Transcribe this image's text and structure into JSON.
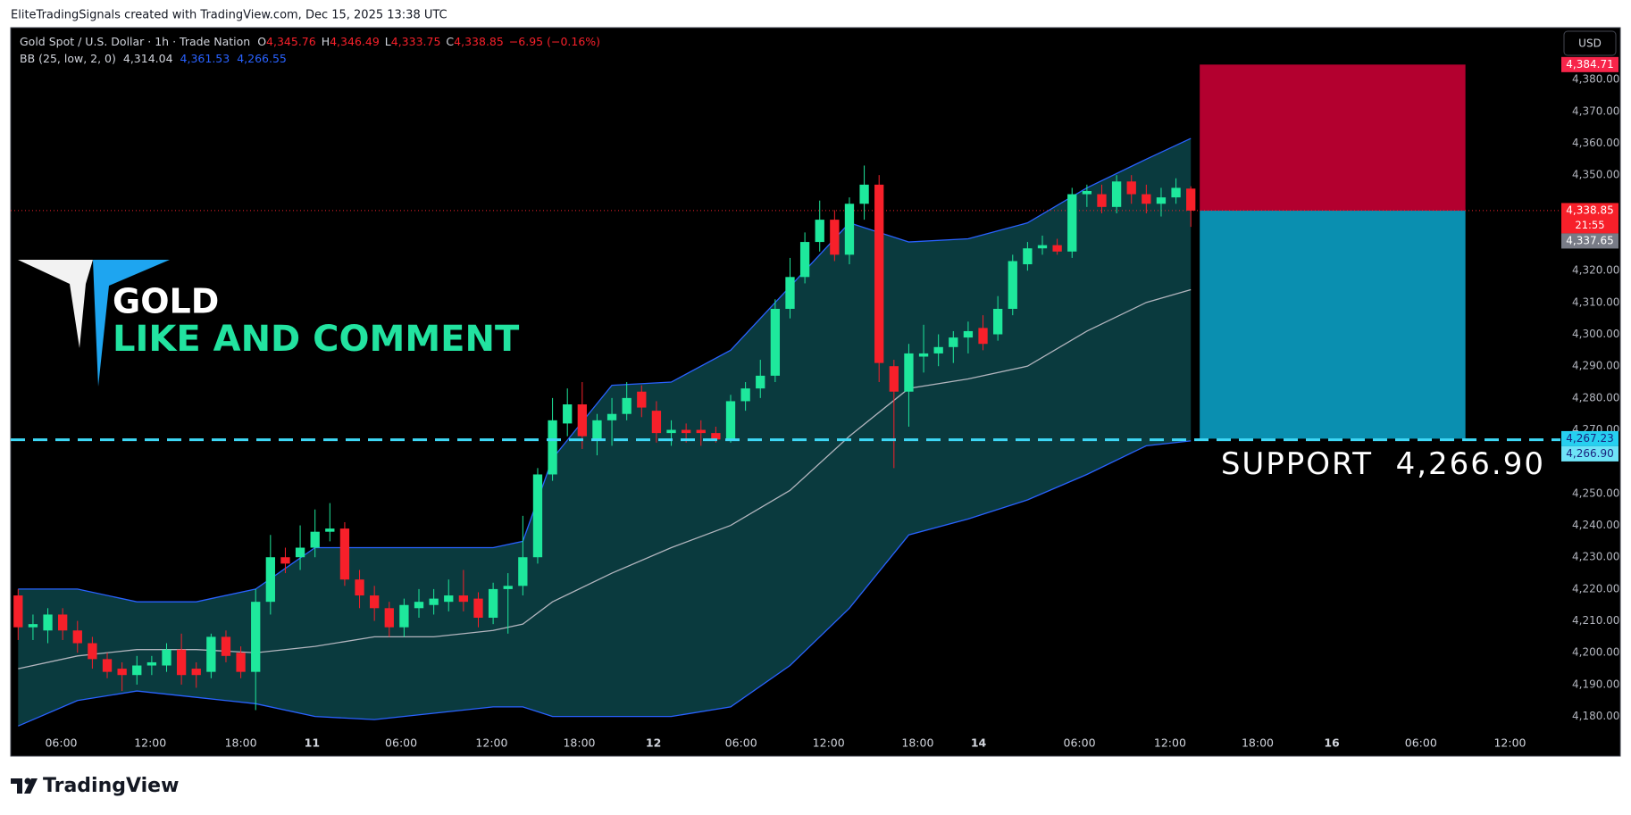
{
  "header": {
    "credit": "EliteTradingSignals created with TradingView.com, Dec 15, 2025 13:38 UTC"
  },
  "chart_data": {
    "type": "candlestick",
    "title": "Gold Spot / U.S. Dollar · 1h · Trade Nation",
    "ohlc_legend": [
      {
        "label": "O",
        "value": "4,345.76"
      },
      {
        "label": "H",
        "value": "4,346.49"
      },
      {
        "label": "L",
        "value": "4,333.75"
      },
      {
        "label": "C",
        "value": "4,338.85"
      }
    ],
    "change": "−6.95 (−0.16%)",
    "legend_value_color": "#f7202a",
    "indicator": {
      "name": "BB (25, low, 2, 0)",
      "values": [
        "4,314.04",
        "4,361.53",
        "4,266.55"
      ],
      "colors": [
        "#d1d4dc",
        "#2962ff",
        "#2962ff"
      ]
    },
    "x": [
      0,
      1,
      2,
      3,
      4,
      5,
      6,
      7,
      8,
      9,
      10,
      11,
      12,
      13,
      14,
      15,
      16,
      17,
      18,
      19,
      20,
      21,
      22,
      23,
      24,
      25,
      26,
      27,
      28,
      29,
      30,
      31,
      32,
      33,
      34,
      35,
      36,
      37,
      38,
      39,
      40,
      41,
      42,
      43,
      44,
      45,
      46,
      47,
      48,
      49,
      50,
      51,
      52,
      53,
      54,
      55,
      56,
      57,
      58,
      59,
      60,
      61,
      62,
      63,
      64,
      65,
      66,
      67,
      68,
      69,
      70,
      71,
      72,
      73,
      74,
      75,
      76,
      77,
      78,
      79
    ],
    "open": [
      4218,
      4208,
      4207,
      4212,
      4207,
      4203,
      4198,
      4195,
      4193,
      4196,
      4196,
      4201,
      4195,
      4194,
      4205,
      4200,
      4194,
      4216,
      4230,
      4230,
      4233,
      4238,
      4239,
      4223,
      4218,
      4214,
      4208,
      4214,
      4215,
      4216,
      4218,
      4217,
      4211,
      4220,
      4221,
      4230,
      4256,
      4272,
      4278,
      4267,
      4273,
      4275,
      4282,
      4276,
      4269,
      4270,
      4270,
      4269,
      4267,
      4279,
      4283,
      4287,
      4308,
      4318,
      4329,
      4336,
      4325,
      4341,
      4347,
      4290,
      4282,
      4293,
      4294,
      4296,
      4299,
      4302,
      4300,
      4308,
      4322,
      4327,
      4328,
      4326,
      4344,
      4344,
      4340,
      4348,
      4344,
      4341,
      4343,
      4345.76
    ],
    "high": [
      4220,
      4212,
      4214,
      4214,
      4210,
      4205,
      4200,
      4197,
      4199,
      4199,
      4203,
      4206,
      4197,
      4206,
      4207,
      4202,
      4220,
      4237,
      4233,
      4240,
      4245,
      4247,
      4241,
      4226,
      4221,
      4216,
      4217,
      4220,
      4220,
      4223,
      4226,
      4219,
      4222,
      4225,
      4243,
      4258,
      4280,
      4283,
      4285,
      4275,
      4280,
      4285,
      4284,
      4279,
      4273,
      4272,
      4273,
      4271,
      4281,
      4285,
      4292,
      4311,
      4324,
      4332,
      4342,
      4339,
      4343,
      4353,
      4350,
      4292,
      4297,
      4303,
      4300,
      4301,
      4304,
      4306,
      4312,
      4325,
      4329,
      4331,
      4330,
      4346,
      4347,
      4347,
      4350,
      4350,
      4347,
      4346,
      4349,
      4346.49
    ],
    "low": [
      4204,
      4204,
      4203,
      4204,
      4200,
      4195,
      4192,
      4188,
      4190,
      4193,
      4194,
      4190,
      4189,
      4192,
      4197,
      4192,
      4182,
      4212,
      4225,
      4226,
      4230,
      4235,
      4221,
      4214,
      4210,
      4205,
      4205,
      4211,
      4212,
      4213,
      4213,
      4208,
      4209,
      4206,
      4218,
      4228,
      4254,
      4268,
      4264,
      4262,
      4265,
      4273,
      4274,
      4266,
      4265,
      4266,
      4265,
      4266,
      4266,
      4276,
      4280,
      4285,
      4305,
      4316,
      4326,
      4323,
      4322,
      4336,
      4285,
      4258,
      4271,
      4288,
      4290,
      4291,
      4294,
      4295,
      4298,
      4306,
      4320,
      4325,
      4325,
      4324,
      4340,
      4338,
      4338,
      4341,
      4338,
      4337,
      4341,
      4333.75
    ],
    "close": [
      4208,
      4209,
      4212,
      4207,
      4203,
      4198,
      4194,
      4193,
      4196,
      4197,
      4201,
      4193,
      4193,
      4205,
      4199,
      4194,
      4216,
      4230,
      4228,
      4233,
      4238,
      4239,
      4223,
      4218,
      4214,
      4208,
      4215,
      4216,
      4217,
      4218,
      4216,
      4211,
      4220,
      4221,
      4230,
      4256,
      4273,
      4278,
      4268,
      4273,
      4275,
      4280,
      4277,
      4269,
      4270,
      4269,
      4269,
      4267,
      4279,
      4283,
      4287,
      4308,
      4318,
      4329,
      4336,
      4325,
      4341,
      4347,
      4291,
      4282,
      4294,
      4294,
      4296,
      4299,
      4301,
      4297,
      4308,
      4323,
      4327,
      4328,
      4326,
      4344,
      4345,
      4340,
      4348,
      4344,
      4341,
      4343,
      4346,
      4338.85
    ],
    "up_color": "#1ee89c",
    "down_color": "#f7202a",
    "bands": {
      "x": [
        0,
        4,
        8,
        12,
        16,
        20,
        24,
        28,
        32,
        34,
        36,
        40,
        44,
        48,
        52,
        56,
        60,
        64,
        68,
        72,
        76,
        79
      ],
      "upper": [
        4220,
        4220,
        4216,
        4216,
        4220,
        4233,
        4233,
        4233,
        4233,
        4235,
        4261,
        4284,
        4285,
        4295,
        4315,
        4335,
        4329,
        4330,
        4335,
        4346,
        4355,
        4361.53
      ],
      "middle": [
        4195,
        4199,
        4201,
        4201,
        4200,
        4202,
        4205,
        4205,
        4207,
        4209,
        4216,
        4225,
        4233,
        4240,
        4251,
        4268,
        4283,
        4286,
        4290,
        4301,
        4310,
        4314.04
      ],
      "lower": [
        4177,
        4185,
        4188,
        4186,
        4184,
        4180,
        4179,
        4181,
        4183,
        4183,
        4180,
        4180,
        4180,
        4183,
        4196,
        4214,
        4237,
        4242,
        4248,
        4256,
        4265,
        4266.55
      ],
      "band_color": "#2962ff",
      "middle_color": "#b2b5be",
      "fill": "#0a3a3e"
    },
    "xlim": [
      -0.5,
      103.9
    ],
    "xticks": [
      {
        "value": 2.9,
        "label": "06:00"
      },
      {
        "value": 8.9,
        "label": "12:00"
      },
      {
        "value": 15,
        "label": "18:00"
      },
      {
        "value": 19.8,
        "label": "11"
      },
      {
        "value": 25.8,
        "label": "06:00"
      },
      {
        "value": 31.9,
        "label": "12:00"
      },
      {
        "value": 37.8,
        "label": "18:00"
      },
      {
        "value": 42.8,
        "label": "12"
      },
      {
        "value": 48.7,
        "label": "06:00"
      },
      {
        "value": 54.6,
        "label": "12:00"
      },
      {
        "value": 60.6,
        "label": "18:00"
      },
      {
        "value": 64.7,
        "label": "14"
      },
      {
        "value": 71.5,
        "label": "06:00"
      },
      {
        "value": 77.6,
        "label": "12:00"
      },
      {
        "value": 83.5,
        "label": "18:00"
      },
      {
        "value": 88.5,
        "label": "16"
      },
      {
        "value": 94.5,
        "label": "06:00"
      },
      {
        "value": 100.5,
        "label": "12:00"
      }
    ],
    "ylim": [
      4175.4,
      4396.3
    ],
    "yticks": [
      {
        "value": 4180,
        "label": "4,180.00"
      },
      {
        "value": 4190,
        "label": "4,190.00"
      },
      {
        "value": 4200,
        "label": "4,200.00"
      },
      {
        "value": 4210,
        "label": "4,210.00"
      },
      {
        "value": 4220,
        "label": "4,220.00"
      },
      {
        "value": 4230,
        "label": "4,230.00"
      },
      {
        "value": 4240,
        "label": "4,240.00"
      },
      {
        "value": 4250,
        "label": "4,250.00"
      },
      {
        "value": 4270,
        "label": "4,270.00"
      },
      {
        "value": 4280,
        "label": "4,280.00"
      },
      {
        "value": 4290,
        "label": "4,290.00"
      },
      {
        "value": 4300,
        "label": "4,300.00"
      },
      {
        "value": 4310,
        "label": "4,310.00"
      },
      {
        "value": 4320,
        "label": "4,320.00"
      },
      {
        "value": 4350,
        "label": "4,350.00"
      },
      {
        "value": 4360,
        "label": "4,360.00"
      },
      {
        "value": 4370,
        "label": "4,370.00"
      },
      {
        "value": 4380,
        "label": "4,380.00"
      }
    ],
    "price_labels": [
      {
        "value": 4384.71,
        "label": "4,384.71",
        "color": "#f7254a",
        "text_color": "#ffffff"
      },
      {
        "value": 4338.85,
        "label": "4,338.85",
        "sub": "21:55",
        "color": "#f7202a",
        "text_color": "#ffffff"
      },
      {
        "value": 4337.65,
        "label": "4,337.65",
        "color": "#787b86",
        "text_color": "#ffffff"
      },
      {
        "value": 4267.23,
        "label": "4,267.23",
        "color": "#26d0f0",
        "text_color": "#1a237e"
      },
      {
        "value": 4266.9,
        "label": "4,266.90",
        "color": "#6ee3f7",
        "text_color": "#1a237e"
      }
    ],
    "position": {
      "x": [
        79.6,
        97.5
      ],
      "stop": 4384.71,
      "entry": 4338.85,
      "target": 4267.23,
      "stop_color": "#b3002f",
      "target_color": "#0a8fb0"
    },
    "current_price": 4338.85,
    "support": {
      "value": 4266.9,
      "label": "SUPPORT  4,266.90",
      "color": "#3ed8f6"
    },
    "currency": "USD",
    "watermark": {
      "title": "GOLD",
      "subtitle": "LIKE AND COMMENT"
    }
  },
  "footer": {
    "brand": "TradingView"
  }
}
